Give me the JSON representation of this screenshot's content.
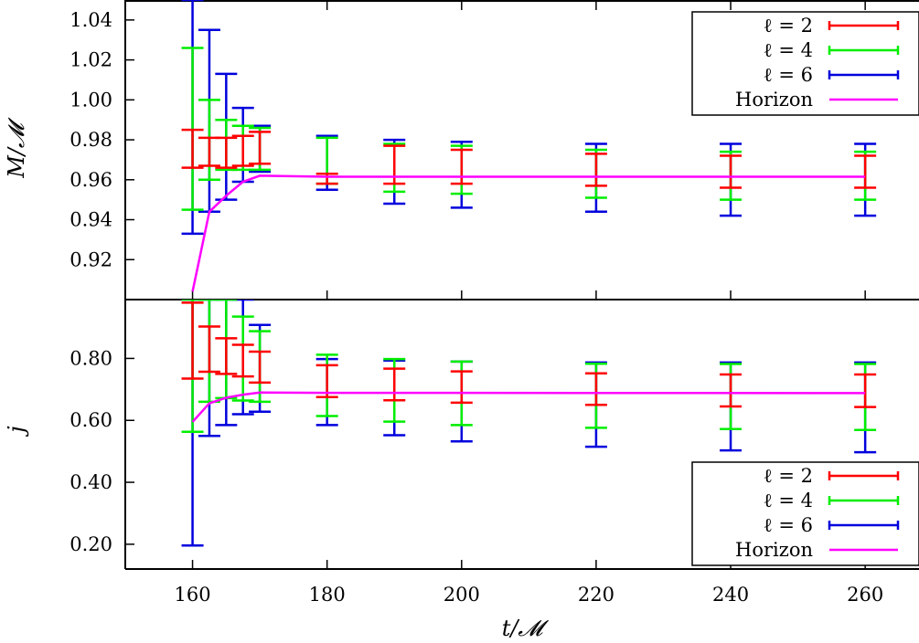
{
  "chart_data": [
    {
      "type": "errorbar-line",
      "panel": "top",
      "ylabel": "M/𝓜",
      "xlabel": "",
      "xlim": [
        150,
        268
      ],
      "ylim": [
        0.9,
        1.05
      ],
      "x_ticks": [],
      "y_ticks": [
        0.92,
        0.94,
        0.96,
        0.98,
        1.0,
        1.02,
        1.04
      ],
      "y_tick_labels": [
        "0.92",
        "0.94",
        "0.96",
        "0.98",
        "1.00",
        "1.02",
        "1.04"
      ],
      "legend_position": "top-right",
      "series": [
        {
          "name": "ℓ = 2",
          "color": "#ff0000",
          "points": [
            {
              "x": 160,
              "low": 0.966,
              "high": 0.985
            },
            {
              "x": 162.5,
              "low": 0.967,
              "high": 0.981
            },
            {
              "x": 165,
              "low": 0.966,
              "high": 0.981
            },
            {
              "x": 167.5,
              "low": 0.967,
              "high": 0.982
            },
            {
              "x": 170,
              "low": 0.968,
              "high": 0.984
            },
            {
              "x": 180,
              "low": 0.958,
              "high": 0.963
            },
            {
              "x": 190,
              "low": 0.958,
              "high": 0.977
            },
            {
              "x": 200,
              "low": 0.958,
              "high": 0.975
            },
            {
              "x": 220,
              "low": 0.957,
              "high": 0.973
            },
            {
              "x": 240,
              "low": 0.956,
              "high": 0.972
            },
            {
              "x": 260,
              "low": 0.956,
              "high": 0.972
            }
          ]
        },
        {
          "name": "ℓ = 4",
          "color": "#00ee00",
          "points": [
            {
              "x": 160,
              "low": 0.945,
              "high": 1.026
            },
            {
              "x": 162.5,
              "low": 0.96,
              "high": 1.0
            },
            {
              "x": 165,
              "low": 0.965,
              "high": 0.99
            },
            {
              "x": 167.5,
              "low": 0.965,
              "high": 0.987
            },
            {
              "x": 170,
              "low": 0.965,
              "high": 0.986
            },
            {
              "x": 180,
              "low": 0.958,
              "high": 0.981
            },
            {
              "x": 190,
              "low": 0.954,
              "high": 0.978
            },
            {
              "x": 200,
              "low": 0.953,
              "high": 0.977
            },
            {
              "x": 220,
              "low": 0.951,
              "high": 0.975
            },
            {
              "x": 240,
              "low": 0.95,
              "high": 0.974
            },
            {
              "x": 260,
              "low": 0.95,
              "high": 0.974
            }
          ]
        },
        {
          "name": "ℓ = 6",
          "color": "#0000dd",
          "points": [
            {
              "x": 160,
              "low": 0.933,
              "high": 1.05
            },
            {
              "x": 162.5,
              "low": 0.944,
              "high": 1.035
            },
            {
              "x": 165,
              "low": 0.95,
              "high": 1.013
            },
            {
              "x": 167.5,
              "low": 0.959,
              "high": 0.996
            },
            {
              "x": 170,
              "low": 0.964,
              "high": 0.987
            },
            {
              "x": 180,
              "low": 0.955,
              "high": 0.982
            },
            {
              "x": 190,
              "low": 0.948,
              "high": 0.98
            },
            {
              "x": 200,
              "low": 0.946,
              "high": 0.979
            },
            {
              "x": 220,
              "low": 0.944,
              "high": 0.978
            },
            {
              "x": 240,
              "low": 0.942,
              "high": 0.978
            },
            {
              "x": 260,
              "low": 0.942,
              "high": 0.978
            }
          ]
        },
        {
          "name": "Horizon",
          "color": "#ff00ff",
          "line": [
            {
              "x": 160,
              "y": 0.904
            },
            {
              "x": 162.5,
              "y": 0.944
            },
            {
              "x": 165,
              "y": 0.952
            },
            {
              "x": 167.5,
              "y": 0.959
            },
            {
              "x": 170,
              "y": 0.962
            },
            {
              "x": 180,
              "y": 0.9615
            },
            {
              "x": 260,
              "y": 0.9615
            }
          ]
        }
      ]
    },
    {
      "type": "errorbar-line",
      "panel": "bottom",
      "ylabel": "j",
      "xlabel": "t/𝓜",
      "xlim": [
        150,
        268
      ],
      "ylim": [
        0.12,
        0.99
      ],
      "x_ticks": [
        160,
        180,
        200,
        220,
        240,
        260
      ],
      "x_tick_labels": [
        "160",
        "180",
        "200",
        "220",
        "240",
        "260"
      ],
      "y_ticks": [
        0.2,
        0.4,
        0.6,
        0.8
      ],
      "y_tick_labels": [
        "0.20",
        "0.40",
        "0.60",
        "0.80"
      ],
      "legend_position": "bottom-right",
      "series": [
        {
          "name": "ℓ = 2",
          "color": "#ff0000",
          "points": [
            {
              "x": 160,
              "low": 0.735,
              "high": 0.98
            },
            {
              "x": 162.5,
              "low": 0.757,
              "high": 0.903
            },
            {
              "x": 165,
              "low": 0.75,
              "high": 0.865
            },
            {
              "x": 167.5,
              "low": 0.742,
              "high": 0.844
            },
            {
              "x": 170,
              "low": 0.722,
              "high": 0.822
            },
            {
              "x": 180,
              "low": 0.675,
              "high": 0.778
            },
            {
              "x": 190,
              "low": 0.665,
              "high": 0.767
            },
            {
              "x": 200,
              "low": 0.657,
              "high": 0.758
            },
            {
              "x": 220,
              "low": 0.65,
              "high": 0.752
            },
            {
              "x": 240,
              "low": 0.645,
              "high": 0.748
            },
            {
              "x": 260,
              "low": 0.643,
              "high": 0.748
            }
          ]
        },
        {
          "name": "ℓ = 4",
          "color": "#00ee00",
          "points": [
            {
              "x": 160,
              "low": 0.563,
              "high": 0.99
            },
            {
              "x": 162.5,
              "low": 0.66,
              "high": 0.99
            },
            {
              "x": 165,
              "low": 0.672,
              "high": 0.99
            },
            {
              "x": 167.5,
              "low": 0.664,
              "high": 0.935
            },
            {
              "x": 170,
              "low": 0.66,
              "high": 0.888
            },
            {
              "x": 180,
              "low": 0.614,
              "high": 0.812
            },
            {
              "x": 190,
              "low": 0.596,
              "high": 0.798
            },
            {
              "x": 200,
              "low": 0.585,
              "high": 0.79
            },
            {
              "x": 220,
              "low": 0.576,
              "high": 0.783
            },
            {
              "x": 240,
              "low": 0.572,
              "high": 0.782
            },
            {
              "x": 260,
              "low": 0.569,
              "high": 0.782
            }
          ]
        },
        {
          "name": "ℓ = 6",
          "color": "#0000dd",
          "points": [
            {
              "x": 160,
              "low": 0.196,
              "high": 0.99
            },
            {
              "x": 162.5,
              "low": 0.55,
              "high": 0.99
            },
            {
              "x": 165,
              "low": 0.585,
              "high": 0.99
            },
            {
              "x": 167.5,
              "low": 0.62,
              "high": 0.99
            },
            {
              "x": 170,
              "low": 0.628,
              "high": 0.908
            },
            {
              "x": 180,
              "low": 0.585,
              "high": 0.798
            },
            {
              "x": 190,
              "low": 0.552,
              "high": 0.793
            },
            {
              "x": 200,
              "low": 0.532,
              "high": 0.79
            },
            {
              "x": 220,
              "low": 0.515,
              "high": 0.787
            },
            {
              "x": 240,
              "low": 0.503,
              "high": 0.787
            },
            {
              "x": 260,
              "low": 0.497,
              "high": 0.787
            }
          ]
        },
        {
          "name": "Horizon",
          "color": "#ff00ff",
          "line": [
            {
              "x": 160,
              "y": 0.595
            },
            {
              "x": 162.5,
              "y": 0.655
            },
            {
              "x": 165,
              "y": 0.673
            },
            {
              "x": 167.5,
              "y": 0.683
            },
            {
              "x": 170,
              "y": 0.69
            },
            {
              "x": 180,
              "y": 0.689
            },
            {
              "x": 260,
              "y": 0.688
            }
          ]
        }
      ]
    }
  ]
}
